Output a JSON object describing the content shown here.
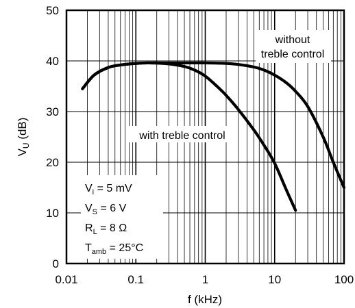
{
  "chart_data": {
    "type": "line",
    "title": "",
    "xlabel": "f (kHz)",
    "ylabel_main": "V",
    "ylabel_sub": "U",
    "ylabel_unit": " (dB)",
    "xscale": "log",
    "xlim": [
      0.01,
      100
    ],
    "ylim": [
      0,
      50
    ],
    "x_ticks": [
      {
        "value": 0.01,
        "label": "0.01"
      },
      {
        "value": 0.1,
        "label": "0.1"
      },
      {
        "value": 1,
        "label": "1"
      },
      {
        "value": 10,
        "label": "10"
      },
      {
        "value": 100,
        "label": "100"
      }
    ],
    "y_ticks": [
      {
        "value": 0,
        "label": "0"
      },
      {
        "value": 10,
        "label": "10"
      },
      {
        "value": 20,
        "label": "20"
      },
      {
        "value": 30,
        "label": "30"
      },
      {
        "value": 40,
        "label": "40"
      },
      {
        "value": 50,
        "label": "50"
      }
    ],
    "grid": true,
    "series": [
      {
        "name": "without treble control",
        "x": [
          0.017,
          0.025,
          0.04,
          0.06,
          0.1,
          0.15,
          0.3,
          0.6,
          1,
          2,
          3,
          5,
          7,
          10,
          15,
          20,
          30,
          50,
          70,
          100
        ],
        "y": [
          34.5,
          37.2,
          38.7,
          39.2,
          39.5,
          39.6,
          39.6,
          39.6,
          39.6,
          39.5,
          39.3,
          38.8,
          38.2,
          37.2,
          35.6,
          34.0,
          31.0,
          25.0,
          20.0,
          15.0
        ]
      },
      {
        "name": "with treble control",
        "x": [
          0.017,
          0.025,
          0.04,
          0.06,
          0.1,
          0.15,
          0.3,
          0.5,
          0.7,
          1,
          1.5,
          2,
          3,
          5,
          7,
          10,
          15,
          20
        ],
        "y": [
          34.5,
          37.2,
          38.7,
          39.2,
          39.5,
          39.6,
          39.4,
          38.9,
          38.2,
          37.0,
          34.9,
          33.2,
          30.4,
          26.4,
          23.4,
          19.8,
          14.3,
          10.5
        ]
      }
    ],
    "annotations": {
      "without_line1": "without",
      "without_line2": "treble control",
      "with_label": "with treble control"
    },
    "conditions": [
      {
        "main": "V",
        "sub": "i",
        "rest": " = 5 mV"
      },
      {
        "main": "V",
        "sub": "S",
        "rest": " = 6 V"
      },
      {
        "main": "R",
        "sub": "L",
        "rest": " = 8 Ω"
      },
      {
        "main": "T",
        "sub": "amb",
        "rest": " = 25°C"
      }
    ]
  }
}
